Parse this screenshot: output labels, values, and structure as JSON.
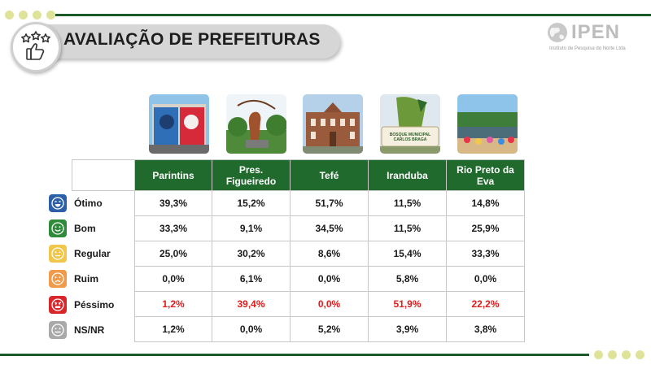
{
  "header": {
    "title": "AVALIAÇÃO DE PREFEITURAS",
    "badge_icon": "stars-thumbs-up-icon"
  },
  "logo": {
    "name": "IPEN",
    "subtitle": "Instituto de Pesquisa do Norte Ltda",
    "icon": "globe-icon"
  },
  "colors": {
    "header_green": "#1f6a2c",
    "line_green": "#1d5a2a",
    "dot_yellow": "#dfe39a",
    "highlight_red": "#e21b1b"
  },
  "table": {
    "columns": [
      "Parintins",
      "Pres.\nFigueiredo",
      "Tefé",
      "Iranduba",
      "Rio Preto da Eva"
    ],
    "rows": [
      {
        "label": "Ótimo",
        "icon": "very-happy-face-icon",
        "color": "#2d5fa8",
        "values": [
          "39,3%",
          "15,2%",
          "51,7%",
          "11,5%",
          "14,8%"
        ],
        "highlight": false
      },
      {
        "label": "Bom",
        "icon": "happy-face-icon",
        "color": "#2f8a3a",
        "values": [
          "33,3%",
          "9,1%",
          "34,5%",
          "11,5%",
          "25,9%"
        ],
        "highlight": false
      },
      {
        "label": "Regular",
        "icon": "neutral-face-icon",
        "color": "#f2c64a",
        "values": [
          "25,0%",
          "30,2%",
          "8,6%",
          "15,4%",
          "33,3%"
        ],
        "highlight": false
      },
      {
        "label": "Ruim",
        "icon": "sad-face-icon",
        "color": "#f09a4a",
        "values": [
          "0,0%",
          "6,1%",
          "0,0%",
          "5,8%",
          "0,0%"
        ],
        "highlight": false
      },
      {
        "label": "Péssimo",
        "icon": "angry-face-icon",
        "color": "#d9262b",
        "values": [
          "1,2%",
          "39,4%",
          "0,0%",
          "51,9%",
          "22,2%"
        ],
        "highlight": true
      },
      {
        "label": "NS/NR",
        "icon": "unsure-face-icon",
        "color": "#a9a9a9",
        "values": [
          "1,2%",
          "0,0%",
          "5,2%",
          "3,9%",
          "3,8%"
        ],
        "highlight": false
      }
    ]
  },
  "photos": [
    {
      "icon": "parintins-photo-icon"
    },
    {
      "icon": "presidente-figueiredo-photo-icon"
    },
    {
      "icon": "tefe-photo-icon"
    },
    {
      "icon": "iranduba-photo-icon",
      "sign_text": "BOSQUE MUNICIPAL CARLOS BRAGA"
    },
    {
      "icon": "rio-preto-da-eva-photo-icon"
    }
  ]
}
